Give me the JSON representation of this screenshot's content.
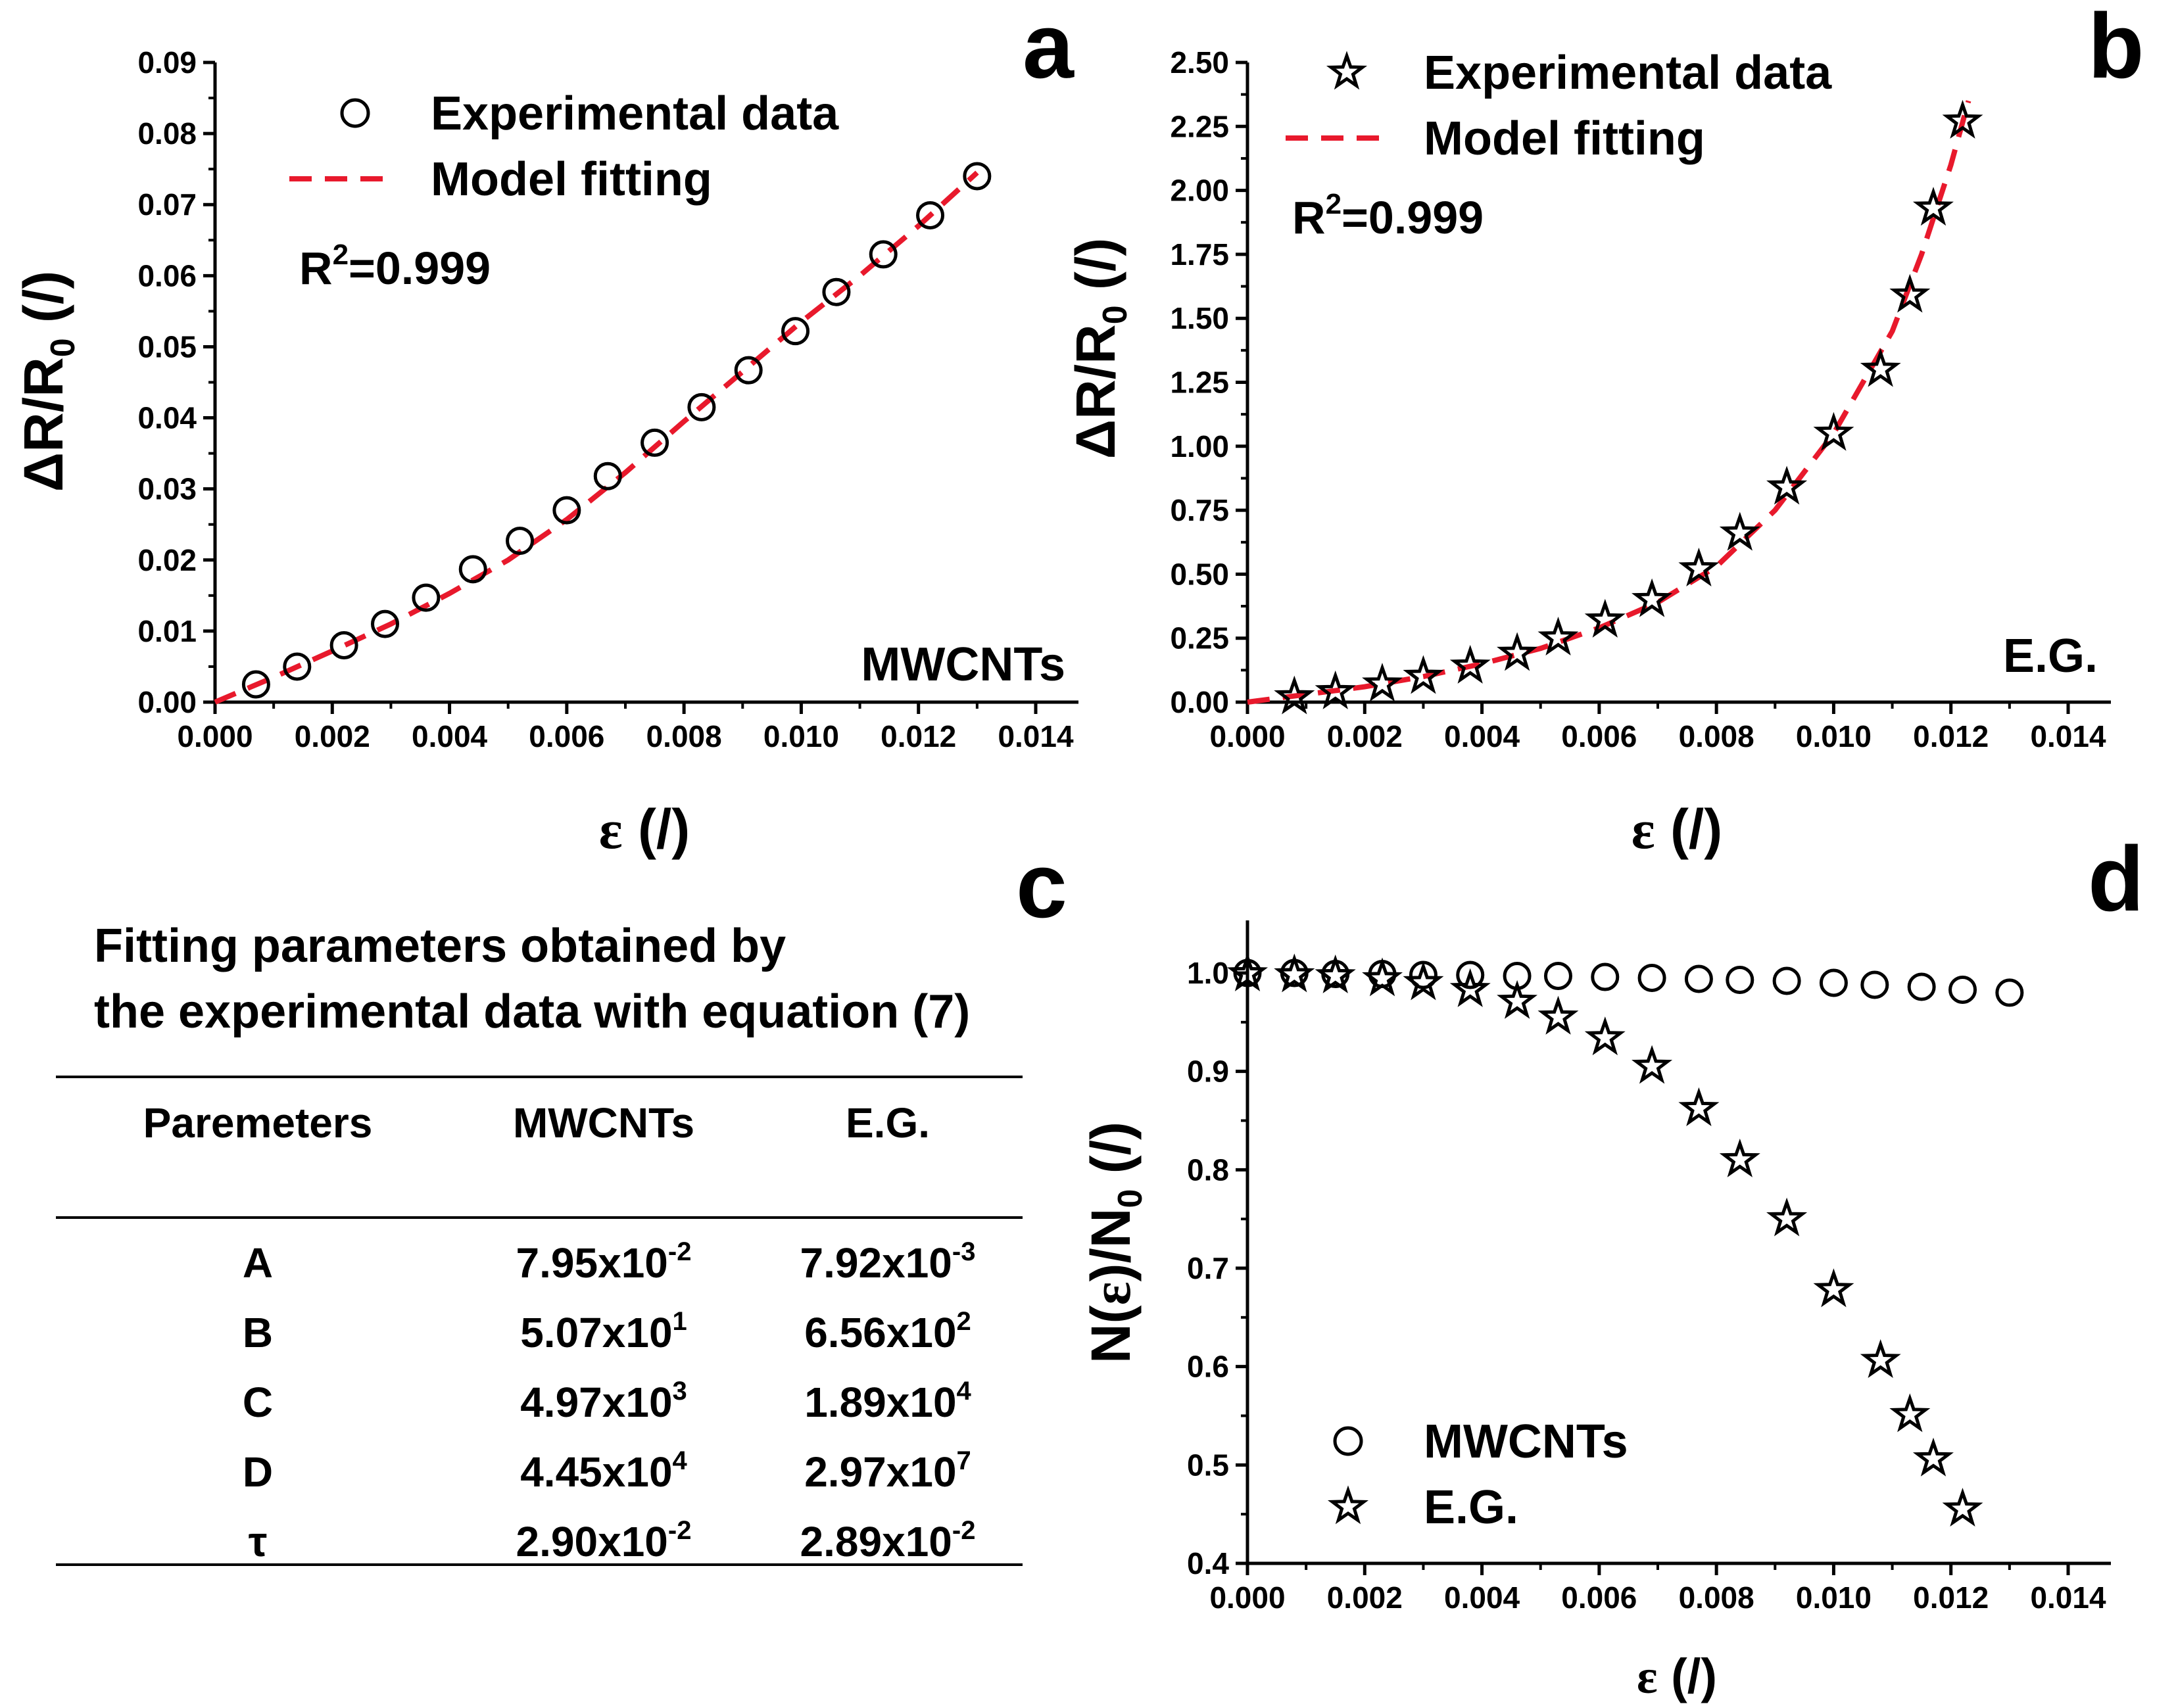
{
  "colors": {
    "fit": "#e8192c",
    "marker": "#000000"
  },
  "chart_data": [
    {
      "panel": "a",
      "type": "scatter",
      "material": "MWCNTs",
      "xlabel": "ε (/)",
      "ylabel": "ΔR/R0 (/)",
      "xlim": [
        0,
        0.015
      ],
      "ylim": [
        0,
        0.09
      ],
      "xticks": [
        "0.000",
        "0.002",
        "0.004",
        "0.006",
        "0.008",
        "0.010",
        "0.012",
        "0.014"
      ],
      "yticks": [
        "0.00",
        "0.01",
        "0.02",
        "0.03",
        "0.04",
        "0.05",
        "0.06",
        "0.07",
        "0.08",
        "0.09"
      ],
      "r2": "R2=0.999",
      "legend": [
        "Experimental data",
        "Model fitting"
      ],
      "legend_position": "top-left",
      "series": [
        {
          "name": "Experimental data",
          "marker": "circle",
          "x": [
            0.0007,
            0.0014,
            0.0022,
            0.0029,
            0.0036,
            0.0044,
            0.0052,
            0.006,
            0.0067,
            0.0075,
            0.0083,
            0.0091,
            0.0099,
            0.0106,
            0.0114,
            0.0122,
            0.013
          ],
          "y": [
            0.0025,
            0.005,
            0.008,
            0.011,
            0.0147,
            0.0187,
            0.0227,
            0.027,
            0.0318,
            0.0365,
            0.0415,
            0.0467,
            0.0522,
            0.0577,
            0.063,
            0.0685,
            0.074
          ]
        },
        {
          "name": "Model fitting",
          "style": "dashed",
          "x": [
            0.0,
            0.001,
            0.002,
            0.003,
            0.004,
            0.005,
            0.006,
            0.007,
            0.008,
            0.009,
            0.01,
            0.011,
            0.012,
            0.013
          ],
          "y": [
            0.0,
            0.0035,
            0.0072,
            0.011,
            0.0153,
            0.02,
            0.0257,
            0.0323,
            0.0395,
            0.0465,
            0.0535,
            0.06,
            0.067,
            0.0745
          ]
        }
      ]
    },
    {
      "panel": "b",
      "type": "scatter",
      "material": "E.G.",
      "xlabel": "ε (/)",
      "ylabel": "ΔR/R0 (/)",
      "xlim": [
        0,
        0.015
      ],
      "ylim": [
        0,
        2.5
      ],
      "xticks": [
        "0.000",
        "0.002",
        "0.004",
        "0.006",
        "0.008",
        "0.010",
        "0.012",
        "0.014"
      ],
      "yticks": [
        "0.00",
        "0.25",
        "0.50",
        "0.75",
        "1.00",
        "1.25",
        "1.50",
        "1.75",
        "2.00",
        "2.25",
        "2.50"
      ],
      "r2": "R2=0.999",
      "legend": [
        "Experimental data",
        "Model fitting"
      ],
      "legend_position": "top",
      "series": [
        {
          "name": "Experimental data",
          "marker": "star",
          "x": [
            0.0008,
            0.0015,
            0.0023,
            0.003,
            0.0038,
            0.0046,
            0.0053,
            0.0061,
            0.0069,
            0.0077,
            0.0084,
            0.0092,
            0.01,
            0.0108,
            0.0113,
            0.0117,
            0.0122
          ],
          "y": [
            0.02,
            0.04,
            0.07,
            0.1,
            0.14,
            0.19,
            0.25,
            0.32,
            0.4,
            0.52,
            0.66,
            0.84,
            1.05,
            1.3,
            1.59,
            1.93,
            2.27
          ]
        },
        {
          "name": "Model fitting",
          "style": "dashed",
          "x": [
            0.0,
            0.001,
            0.002,
            0.003,
            0.004,
            0.005,
            0.006,
            0.007,
            0.008,
            0.009,
            0.01,
            0.011,
            0.0115,
            0.012,
            0.0123
          ],
          "y": [
            0.0,
            0.03,
            0.06,
            0.1,
            0.15,
            0.21,
            0.29,
            0.39,
            0.53,
            0.75,
            1.05,
            1.45,
            1.75,
            2.1,
            2.35
          ]
        }
      ]
    },
    {
      "panel": "c",
      "type": "table",
      "title_line1": "Fitting parameters obtained by",
      "title_line2": "the experimental data with equation (7)",
      "columns": [
        "Paremeters",
        "MWCNTs",
        "E.G."
      ],
      "rows": [
        {
          "param": "A",
          "mw_base": "7.95x10",
          "mw_exp": "-2",
          "eg_base": "7.92x10",
          "eg_exp": "-3"
        },
        {
          "param": "B",
          "mw_base": "5.07x10",
          "mw_exp": "1",
          "eg_base": "6.56x10",
          "eg_exp": "2"
        },
        {
          "param": "C",
          "mw_base": "4.97x10",
          "mw_exp": "3",
          "eg_base": "1.89x10",
          "eg_exp": "4"
        },
        {
          "param": "D",
          "mw_base": "4.45x10",
          "mw_exp": "4",
          "eg_base": "2.97x10",
          "eg_exp": "7"
        },
        {
          "param": "τ",
          "mw_base": "2.90x10",
          "mw_exp": "-2",
          "eg_base": "2.89x10",
          "eg_exp": "-2"
        }
      ]
    },
    {
      "panel": "d",
      "type": "scatter",
      "xlabel": "ε (/)",
      "ylabel": "N(ε)/N0 (/)",
      "xlim": [
        0,
        0.015
      ],
      "ylim": [
        0.4,
        1.05
      ],
      "xticks": [
        "0.000",
        "0.002",
        "0.004",
        "0.006",
        "0.008",
        "0.010",
        "0.012",
        "0.014"
      ],
      "yticks": [
        "0.4",
        "0.5",
        "0.6",
        "0.7",
        "0.8",
        "0.9",
        "1.0"
      ],
      "legend": [
        "MWCNTs",
        "E.G."
      ],
      "legend_position": "bottom-left",
      "series": [
        {
          "name": "MWCNTs",
          "marker": "circle",
          "x": [
            0.0,
            0.0008,
            0.0015,
            0.0023,
            0.003,
            0.0038,
            0.0046,
            0.0053,
            0.0061,
            0.0069,
            0.0077,
            0.0084,
            0.0092,
            0.01,
            0.0107,
            0.0115,
            0.0122,
            0.013
          ],
          "y": [
            1.0,
            1.0,
            0.999,
            0.999,
            0.998,
            0.998,
            0.997,
            0.997,
            0.996,
            0.995,
            0.994,
            0.993,
            0.992,
            0.99,
            0.988,
            0.986,
            0.983,
            0.98
          ]
        },
        {
          "name": "E.G.",
          "marker": "star",
          "x": [
            0.0,
            0.0008,
            0.0015,
            0.0023,
            0.003,
            0.0038,
            0.0046,
            0.0053,
            0.0061,
            0.0069,
            0.0077,
            0.0084,
            0.0092,
            0.01,
            0.0108,
            0.0113,
            0.0117,
            0.0122
          ],
          "y": [
            0.999,
            0.998,
            0.997,
            0.994,
            0.99,
            0.983,
            0.971,
            0.955,
            0.934,
            0.905,
            0.862,
            0.81,
            0.75,
            0.678,
            0.606,
            0.551,
            0.506,
            0.455
          ]
        }
      ]
    }
  ]
}
